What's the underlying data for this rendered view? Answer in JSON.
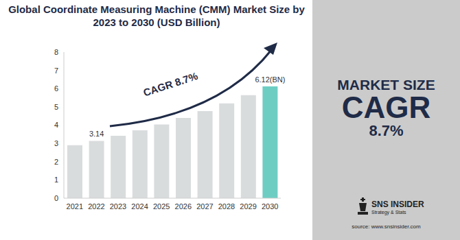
{
  "chart_data": {
    "type": "bar",
    "title": "Global Coordinate Measuring Machine (CMM) Market Size by 2023 to 2030 (USD Billion)",
    "categories": [
      "2021",
      "2022",
      "2023",
      "2024",
      "2025",
      "2026",
      "2027",
      "2028",
      "2029",
      "2030"
    ],
    "values": [
      2.9,
      3.14,
      3.42,
      3.72,
      4.04,
      4.39,
      4.77,
      5.19,
      5.64,
      6.12
    ],
    "value_labels": [
      null,
      "3.14",
      null,
      null,
      null,
      null,
      null,
      null,
      null,
      "6.12(BN)"
    ],
    "colors": [
      "#d9dcdd",
      "#d9dcdd",
      "#d9dcdd",
      "#d9dcdd",
      "#d9dcdd",
      "#d9dcdd",
      "#d9dcdd",
      "#d9dcdd",
      "#d9dcdd",
      "#6dcdc3"
    ],
    "ylim": [
      0,
      8
    ],
    "yticks": [
      0,
      1,
      2,
      3,
      4,
      5,
      6,
      7,
      8
    ],
    "grid": false,
    "annotations": [
      "CAGR 8.7%",
      "MARKET SIZE",
      "CAGR",
      "8.7%",
      "SNS INSIDER",
      "Strategy & Stats",
      "source: www.snsinsider.com"
    ]
  }
}
